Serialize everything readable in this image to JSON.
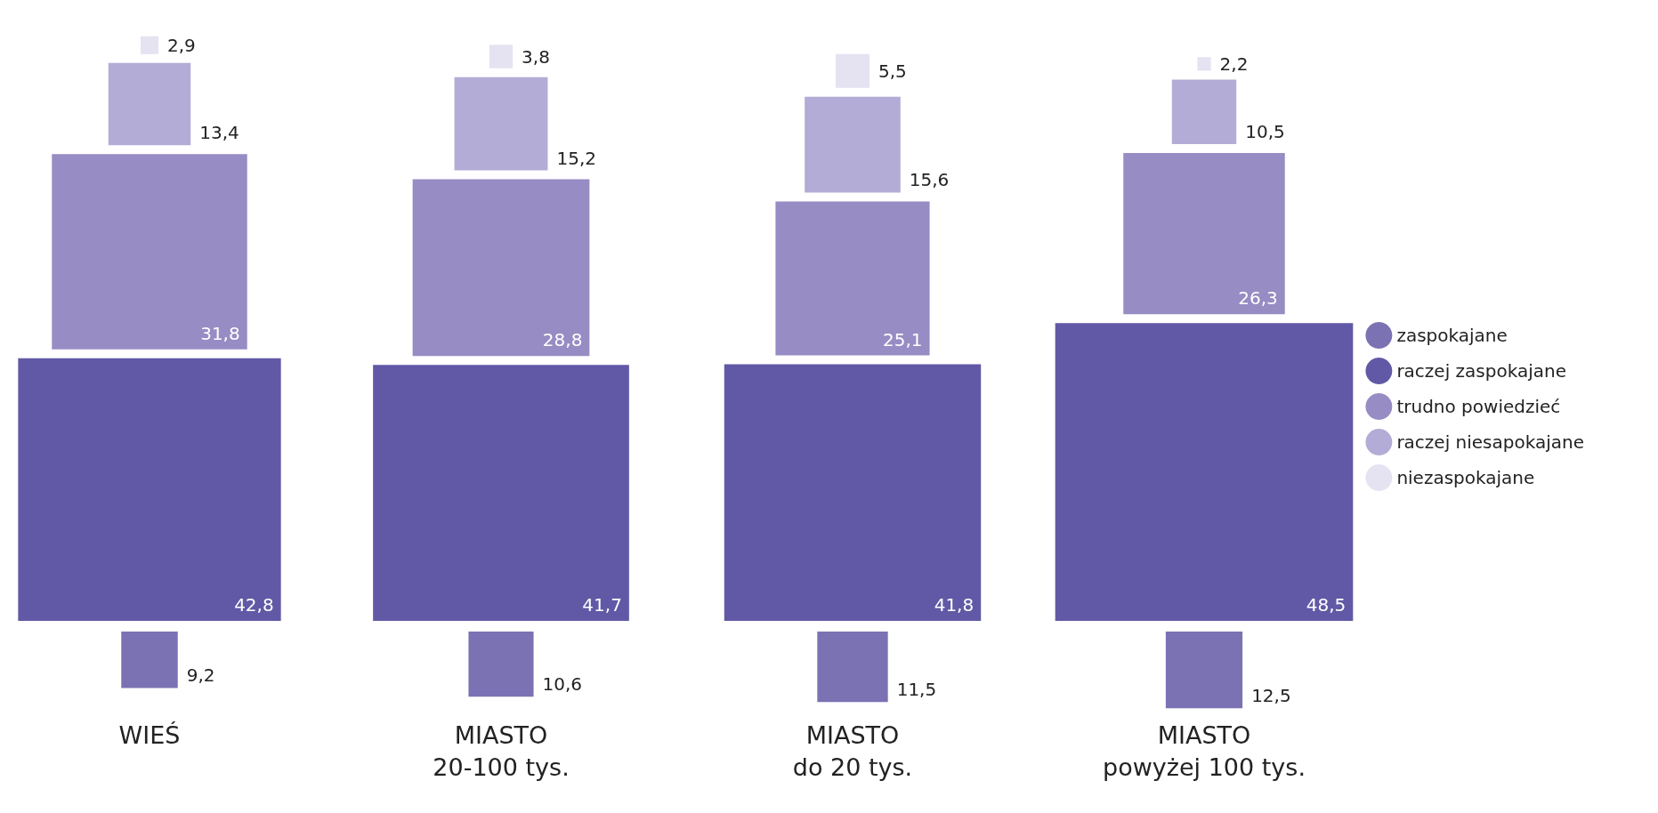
{
  "chart_data": {
    "type": "other",
    "categories": [
      "WIEŚ",
      "MIASTO\n20-100 tys.",
      "MIASTO\ndo 20 tys.",
      "MIASTO\npowyżej 100 tys."
    ],
    "legend": "right",
    "series": [
      {
        "name": "zaspokajane",
        "color": "#7b72b4",
        "values": [
          9.2,
          10.6,
          11.5,
          12.5
        ],
        "value_labels": [
          "9,2",
          "10,6",
          "11,5",
          "12,5"
        ]
      },
      {
        "name": "raczej zaspokajane",
        "color": "#6159a6",
        "values": [
          42.8,
          41.7,
          41.8,
          48.5
        ],
        "value_labels": [
          "42,8",
          "41,7",
          "41,8",
          "48,5"
        ]
      },
      {
        "name": "trudno powiedzieć",
        "color": "#978cc3",
        "values": [
          31.8,
          28.8,
          25.1,
          26.3
        ],
        "value_labels": [
          "31,8",
          "28,8",
          "25,1",
          "26,3"
        ]
      },
      {
        "name": "raczej niesapokajane",
        "color": "#b3acd6",
        "values": [
          13.4,
          15.2,
          15.6,
          10.5
        ],
        "value_labels": [
          "13,4",
          "15,2",
          "15,6",
          "10,5"
        ]
      },
      {
        "name": "niezaspokajane",
        "color": "#e5e2f1",
        "values": [
          2.9,
          3.8,
          5.5,
          2.2
        ],
        "value_labels": [
          "2,9",
          "3,8",
          "5,5",
          "2,2"
        ]
      }
    ]
  }
}
